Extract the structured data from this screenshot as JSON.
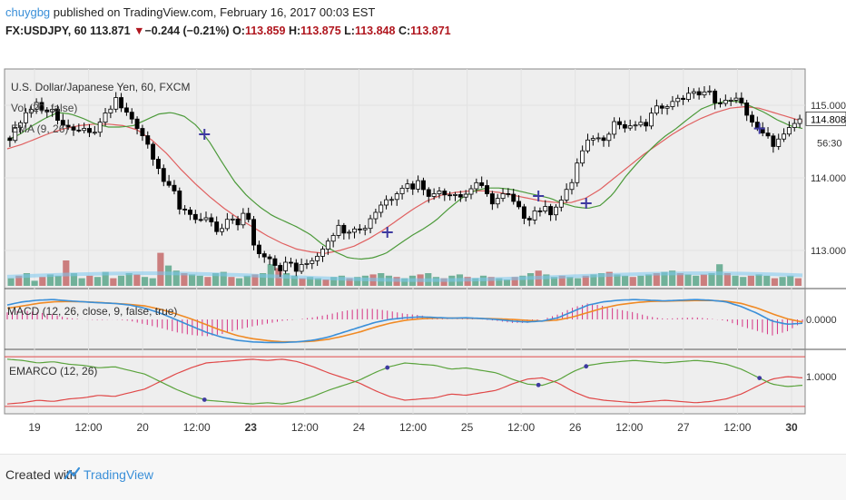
{
  "header": {
    "user": "chuygbg",
    "published_text": " published on TradingView.com, February 16, 2017 00:03 EST",
    "symbol": "FX:USDJPY, 60",
    "last": "113.871",
    "change_arrow": "▼",
    "change": "−0.244 (−0.21%)",
    "o_label": "O:",
    "o_value": "113.859",
    "h_label": "H:",
    "h_value": "113.875",
    "l_label": "L:",
    "l_value": "113.848",
    "c_label": "C:",
    "c_value": "113.871"
  },
  "footer": {
    "created_with": "Created with",
    "brand": "TradingView"
  },
  "colors": {
    "background": "#eeeeee",
    "up_candle": "#ffffff",
    "down_candle": "#000000",
    "ema_fast": "#4c9a3a",
    "ema_slow": "#e06060",
    "macd_line": "#3a8fd8",
    "signal_line": "#f08a24",
    "histogram": "#d63384",
    "emarco_green": "#5aa33c",
    "emarco_red": "#e04848",
    "volume_green": "#5aa68a",
    "volume_red": "#c46a6a",
    "volume_ma": "#7cc8f0",
    "cross_marker": "#3e3aa0"
  },
  "chart_data": [
    {
      "type": "candlestick",
      "title": "U.S. Dollar/Japanese Yen, 60, FXCM",
      "overlay_labels": [
        "Vol (20, false)",
        "EMA (9, 26)"
      ],
      "y_ticks": [
        113.0,
        114.0,
        115.0
      ],
      "y_tick_labels": [
        "113.000",
        "114.000",
        "115.000"
      ],
      "last_price_label": "114.808",
      "countdown_label": "56:30",
      "ylim": [
        112.55,
        115.45
      ],
      "x_tick_labels": [
        "19",
        "12:00",
        "20",
        "12:00",
        "23",
        "12:00",
        "24",
        "12:00",
        "25",
        "12:00",
        "26",
        "12:00",
        "27",
        "12:00",
        "30"
      ],
      "bold_x_ticks": [
        "23",
        "30"
      ],
      "close_path": [
        114.55,
        114.62,
        114.85,
        114.92,
        115.05,
        114.88,
        115.02,
        114.78,
        114.62,
        114.72,
        114.58,
        114.68,
        114.55,
        114.82,
        114.92,
        115.08,
        114.92,
        114.85,
        114.72,
        114.55,
        114.35,
        114.15,
        113.85,
        113.82,
        113.55,
        113.58,
        113.42,
        113.35,
        113.45,
        113.22,
        113.32,
        113.45,
        113.38,
        113.55,
        113.12,
        112.92,
        112.98,
        112.82,
        112.75,
        112.85,
        112.72,
        112.78,
        112.88,
        112.95,
        113.12,
        113.25,
        113.32,
        113.28,
        113.35,
        113.25,
        113.42,
        113.55,
        113.68,
        113.72,
        113.85,
        113.92,
        113.88,
        113.95,
        113.82,
        113.75,
        113.85,
        113.78,
        113.82,
        113.72,
        113.85,
        113.95,
        113.78,
        113.68,
        113.72,
        113.78,
        113.65,
        113.52,
        113.45,
        113.55,
        113.58,
        113.52,
        113.65,
        113.72,
        113.92,
        114.25,
        114.42,
        114.58,
        114.52,
        114.62,
        114.78,
        114.72,
        114.65,
        114.75,
        114.68,
        114.85,
        114.95,
        115.05,
        115.02,
        115.15,
        115.08,
        115.22,
        115.12,
        115.18,
        115.08,
        114.98,
        115.12,
        115.05,
        114.95,
        114.78,
        114.62,
        114.55,
        114.48,
        114.52,
        114.62,
        114.75,
        114.85
      ],
      "ema_fast_path": [
        114.52,
        114.6,
        114.72,
        114.82,
        114.9,
        114.88,
        114.82,
        114.74,
        114.7,
        114.7,
        114.72,
        114.8,
        114.88,
        114.9,
        114.85,
        114.72,
        114.5,
        114.22,
        113.95,
        113.75,
        113.6,
        113.48,
        113.4,
        113.32,
        113.22,
        113.08,
        112.98,
        112.9,
        112.88,
        112.9,
        112.96,
        113.08,
        113.2,
        113.3,
        113.42,
        113.58,
        113.72,
        113.82,
        113.86,
        113.86,
        113.84,
        113.8,
        113.76,
        113.72,
        113.65,
        113.6,
        113.58,
        113.62,
        113.78,
        114.02,
        114.22,
        114.4,
        114.56,
        114.68,
        114.82,
        114.95,
        115.02,
        115.06,
        115.05,
        114.98,
        114.9,
        114.8,
        114.72,
        114.68
      ],
      "ema_slow_path": [
        114.4,
        114.46,
        114.54,
        114.62,
        114.68,
        114.72,
        114.74,
        114.74,
        114.72,
        114.66,
        114.52,
        114.34,
        114.12,
        113.92,
        113.74,
        113.58,
        113.44,
        113.32,
        113.2,
        113.1,
        113.02,
        112.98,
        112.96,
        113.0,
        113.06,
        113.16,
        113.28,
        113.42,
        113.56,
        113.68,
        113.76,
        113.8,
        113.82,
        113.82,
        113.8,
        113.76,
        113.72,
        113.68,
        113.66,
        113.66,
        113.72,
        113.84,
        114.0,
        114.16,
        114.32,
        114.46,
        114.6,
        114.72,
        114.82,
        114.9,
        114.96,
        114.98,
        114.96,
        114.9,
        114.84,
        114.78
      ],
      "volume_relative": [
        0.3,
        0.4,
        0.5,
        0.2,
        0.35,
        0.45,
        0.4,
        1.0,
        0.5,
        0.3,
        0.4,
        0.35,
        0.55,
        0.3,
        0.4,
        0.5,
        0.45,
        0.35,
        0.3,
        1.3,
        0.8,
        0.6,
        0.5,
        0.45,
        0.4,
        0.35,
        0.5,
        0.55,
        0.35,
        0.3,
        0.4,
        0.45,
        0.5,
        0.85,
        0.7,
        0.5,
        0.4,
        0.3,
        0.35,
        0.3,
        0.25,
        0.35,
        0.4,
        0.3,
        0.35,
        0.4,
        0.45,
        0.5,
        0.4,
        0.35,
        0.3,
        0.4,
        0.45,
        0.5,
        0.35,
        0.3,
        0.4,
        0.45,
        0.35,
        0.3,
        0.4,
        0.35,
        0.3,
        0.25,
        0.35,
        0.4,
        0.5,
        0.6,
        0.45,
        0.35,
        0.4,
        0.35,
        0.3,
        0.4,
        0.45,
        0.5,
        0.55,
        0.45,
        0.4,
        0.35,
        0.4,
        0.45,
        0.5,
        0.55,
        0.6,
        0.5,
        0.45,
        0.4,
        0.45,
        0.5,
        0.85,
        0.5,
        0.4,
        0.35,
        0.4,
        0.45,
        0.4,
        0.3,
        0.35,
        0.4,
        0.3
      ],
      "cross_markers": [
        [
          0.248,
          114.6
        ],
        [
          0.478,
          113.25
        ],
        [
          0.668,
          113.75
        ],
        [
          0.728,
          113.65
        ],
        [
          0.946,
          114.68
        ]
      ]
    },
    {
      "type": "line",
      "title": "MACD (12, 26, close, 9, false, true)",
      "y_tick_labels": [
        "0.0000"
      ],
      "macd_path": [
        0.45,
        0.55,
        0.6,
        0.62,
        0.58,
        0.55,
        0.52,
        0.5,
        0.45,
        0.35,
        0.2,
        0.0,
        -0.2,
        -0.4,
        -0.55,
        -0.65,
        -0.7,
        -0.72,
        -0.72,
        -0.7,
        -0.65,
        -0.55,
        -0.4,
        -0.25,
        -0.1,
        0.0,
        0.05,
        0.08,
        0.06,
        0.04,
        0.05,
        0.03,
        0.0,
        -0.05,
        -0.08,
        -0.05,
        0.05,
        0.25,
        0.45,
        0.55,
        0.6,
        0.62,
        0.6,
        0.58,
        0.6,
        0.62,
        0.6,
        0.55,
        0.4,
        0.2,
        -0.05,
        -0.15,
        -0.12
      ],
      "signal_path": [
        0.35,
        0.42,
        0.5,
        0.55,
        0.56,
        0.55,
        0.53,
        0.5,
        0.47,
        0.42,
        0.32,
        0.18,
        0.02,
        -0.16,
        -0.34,
        -0.5,
        -0.6,
        -0.66,
        -0.7,
        -0.7,
        -0.68,
        -0.62,
        -0.52,
        -0.4,
        -0.25,
        -0.12,
        -0.03,
        0.02,
        0.04,
        0.04,
        0.04,
        0.03,
        0.02,
        0.0,
        -0.03,
        -0.05,
        -0.02,
        0.08,
        0.22,
        0.36,
        0.46,
        0.52,
        0.56,
        0.57,
        0.58,
        0.59,
        0.59,
        0.57,
        0.5,
        0.36,
        0.18,
        0.02,
        -0.08
      ],
      "ylim": [
        -0.85,
        0.85
      ]
    },
    {
      "type": "line",
      "title": "EMARCO (12, 26)",
      "y_tick_labels": [
        "1.0000"
      ],
      "green_path": [
        0.9,
        0.85,
        0.75,
        0.8,
        0.7,
        0.65,
        0.55,
        0.6,
        0.45,
        0.3,
        0.0,
        -0.3,
        -0.55,
        -0.75,
        -0.8,
        -0.85,
        -0.9,
        -0.85,
        -0.9,
        -0.8,
        -0.6,
        -0.35,
        -0.15,
        0.05,
        0.35,
        0.6,
        0.75,
        0.7,
        0.65,
        0.5,
        0.55,
        0.45,
        0.35,
        0.1,
        -0.1,
        -0.15,
        0.05,
        0.4,
        0.65,
        0.75,
        0.8,
        0.85,
        0.8,
        0.75,
        0.8,
        0.85,
        0.8,
        0.7,
        0.5,
        0.2,
        -0.1,
        -0.2,
        -0.15
      ],
      "ylim": [
        -1.15,
        1.15
      ]
    }
  ]
}
